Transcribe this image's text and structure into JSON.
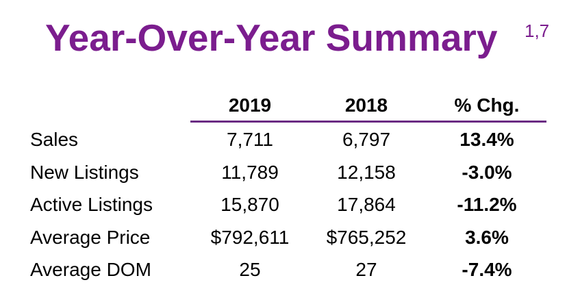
{
  "title": "Year-Over-Year Summary",
  "footnote": "1,7",
  "colors": {
    "title": "#7b1d8e",
    "rule": "#6a2a83"
  },
  "table": {
    "headers": [
      "2019",
      "2018",
      "% Chg."
    ],
    "rows": [
      {
        "label": "Sales",
        "y2019": "7,711",
        "y2018": "6,797",
        "chg": "13.4%"
      },
      {
        "label": "New Listings",
        "y2019": "11,789",
        "y2018": "12,158",
        "chg": "-3.0%"
      },
      {
        "label": "Active Listings",
        "y2019": "15,870",
        "y2018": "17,864",
        "chg": "-11.2%"
      },
      {
        "label": "Average Price",
        "y2019": "$792,611",
        "y2018": "$765,252",
        "chg": "3.6%"
      },
      {
        "label": "Average DOM",
        "y2019": "25",
        "y2018": "27",
        "chg": "-7.4%"
      }
    ]
  }
}
